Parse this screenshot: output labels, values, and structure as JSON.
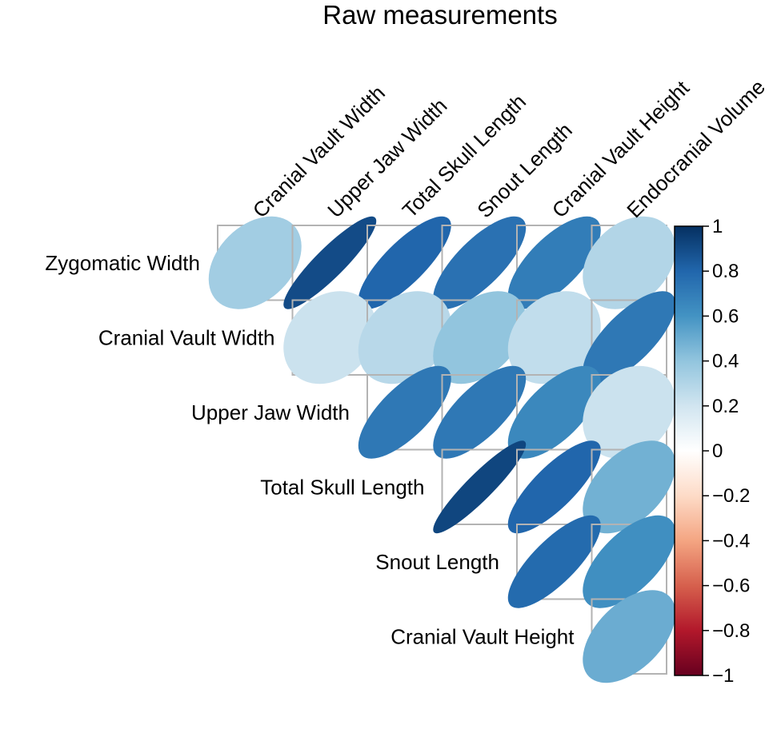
{
  "chart_data": {
    "type": "heatmap",
    "style": "upper-triangle correlation ellipses",
    "title": "Raw measurements",
    "row_labels": [
      "Zygomatic Width",
      "Cranial Vault Width",
      "Upper Jaw Width",
      "Total Skull Length",
      "Snout Length",
      "Cranial Vault Height"
    ],
    "col_labels": [
      "Cranial Vault Width",
      "Upper Jaw Width",
      "Total Skull Length",
      "Snout Length",
      "Cranial Vault Height",
      "Endocranial Volume"
    ],
    "values": [
      [
        0.35,
        0.9,
        0.8,
        0.75,
        0.7,
        0.3
      ],
      [
        null,
        0.22,
        0.28,
        0.4,
        0.25,
        0.72
      ],
      [
        null,
        null,
        0.72,
        0.72,
        0.65,
        0.22
      ],
      [
        null,
        null,
        null,
        0.92,
        0.8,
        0.48
      ],
      [
        null,
        null,
        null,
        null,
        0.78,
        0.62
      ],
      [
        null,
        null,
        null,
        null,
        null,
        0.5
      ]
    ],
    "colorbar": {
      "range": [
        -1,
        1
      ],
      "ticks": [
        "1",
        "0.8",
        "0.6",
        "0.4",
        "0.2",
        "0",
        "−0.2",
        "−0.4",
        "−0.6",
        "−0.8",
        "−1"
      ]
    },
    "colors": {
      "neg_end": "#67001f",
      "zero": "#ffffff",
      "pos_end": "#053061",
      "grid": "#b3b3b3"
    }
  }
}
